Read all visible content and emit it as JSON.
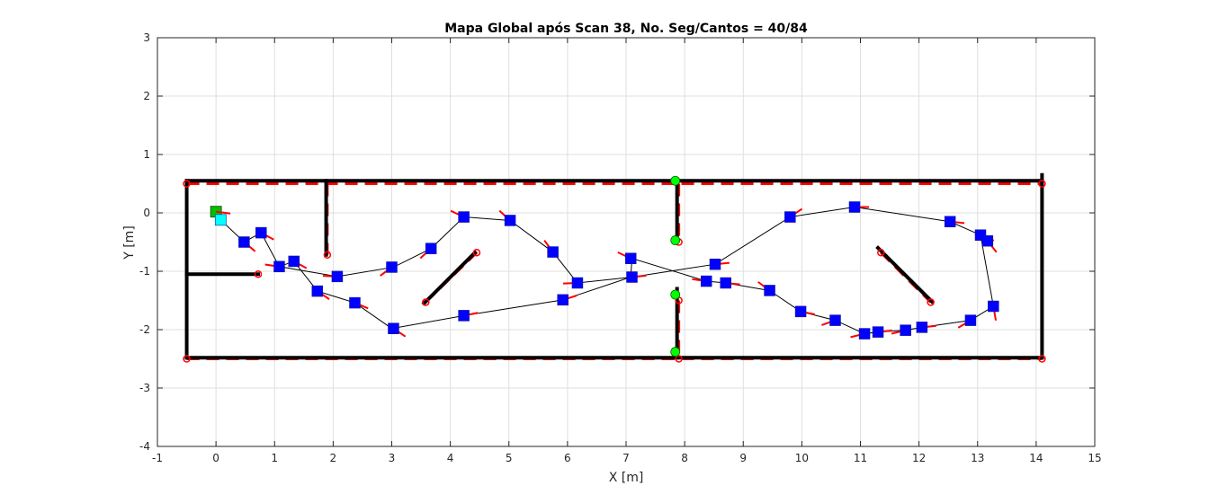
{
  "chart_data": {
    "type": "scatter",
    "title": "Mapa Global após Scan 38, No. Seg/Cantos = 40/84",
    "xlabel": "X [m]",
    "ylabel": "Y [m]",
    "xlim": [
      -1,
      15
    ],
    "ylim": [
      -4,
      3
    ],
    "xticks": [
      "-1",
      "0",
      "1",
      "2",
      "3",
      "4",
      "5",
      "6",
      "7",
      "8",
      "9",
      "10",
      "11",
      "12",
      "13",
      "14",
      "15"
    ],
    "yticks": [
      "-4",
      "-3",
      "-2",
      "-1",
      "0",
      "1",
      "2",
      "3"
    ],
    "grid": true,
    "colors": {
      "wall_segments": "#000000",
      "reference_map": "#ff0000",
      "robot_pose": "#0000ff",
      "start_pose": "#00c000",
      "current_pose": "#00ffff",
      "endpoint_marker": "#00ff00"
    },
    "walls": [
      {
        "x": [
          -0.5,
          14.1
        ],
        "y": [
          0.55,
          0.55
        ]
      },
      {
        "x": [
          -0.5,
          14.1
        ],
        "y": [
          -2.48,
          -2.48
        ]
      },
      {
        "x": [
          -0.5,
          -0.5
        ],
        "y": [
          0.55,
          -2.48
        ]
      },
      {
        "x": [
          14.1,
          14.1
        ],
        "y": [
          0.65,
          -2.48
        ]
      },
      {
        "x": [
          1.88,
          1.88
        ],
        "y": [
          0.55,
          -0.72
        ]
      },
      {
        "x": [
          -0.5,
          0.72
        ],
        "y": [
          -1.05,
          -1.05
        ]
      },
      {
        "x": [
          7.87,
          7.87
        ],
        "y": [
          0.55,
          -0.47
        ]
      },
      {
        "x": [
          7.87,
          7.87
        ],
        "y": [
          -1.3,
          -2.48
        ]
      },
      {
        "x": [
          3.55,
          4.42
        ],
        "y": [
          -1.55,
          -0.68
        ]
      },
      {
        "x": [
          11.3,
          12.22
        ],
        "y": [
          -0.6,
          -1.52
        ]
      }
    ],
    "reference_segments": [
      {
        "x": [
          -0.5,
          14.1
        ],
        "y": [
          0.5,
          0.5
        ]
      },
      {
        "x": [
          -0.5,
          14.1
        ],
        "y": [
          -2.5,
          -2.5
        ]
      },
      {
        "x": [
          -0.5,
          -0.5
        ],
        "y": [
          0.5,
          -2.5
        ]
      },
      {
        "x": [
          14.1,
          14.1
        ],
        "y": [
          0.5,
          -2.5
        ]
      },
      {
        "x": [
          1.9,
          1.9
        ],
        "y": [
          0.5,
          -0.72
        ]
      },
      {
        "x": [
          -0.5,
          0.72
        ],
        "y": [
          -1.05,
          -1.05
        ]
      },
      {
        "x": [
          7.9,
          7.9
        ],
        "y": [
          0.5,
          -0.5
        ]
      },
      {
        "x": [
          7.9,
          7.9
        ],
        "y": [
          -1.5,
          -2.5
        ]
      },
      {
        "x": [
          3.58,
          4.45
        ],
        "y": [
          -1.53,
          -0.68
        ]
      },
      {
        "x": [
          11.35,
          12.2
        ],
        "y": [
          -0.68,
          -1.53
        ]
      }
    ],
    "corners": [
      {
        "x": -0.5,
        "y": 0.5
      },
      {
        "x": 14.1,
        "y": 0.5
      },
      {
        "x": -0.5,
        "y": -2.5
      },
      {
        "x": 14.1,
        "y": -2.5
      },
      {
        "x": 1.9,
        "y": -0.72
      },
      {
        "x": 0.72,
        "y": -1.05
      },
      {
        "x": 7.9,
        "y": -0.5
      },
      {
        "x": 7.9,
        "y": -1.5
      },
      {
        "x": 7.9,
        "y": -2.5
      },
      {
        "x": 3.58,
        "y": -1.53
      },
      {
        "x": 4.45,
        "y": -0.68
      },
      {
        "x": 11.35,
        "y": -0.68
      },
      {
        "x": 12.2,
        "y": -1.53
      }
    ],
    "endpoints": [
      {
        "x": 7.84,
        "y": 0.55
      },
      {
        "x": 7.84,
        "y": -0.47
      },
      {
        "x": 7.84,
        "y": -1.4
      },
      {
        "x": 7.84,
        "y": -2.38
      }
    ],
    "trajectory": {
      "x": [
        0.0,
        0.08,
        0.48,
        0.77,
        1.08,
        1.33,
        1.73,
        2.37,
        3.0,
        4.23,
        5.92,
        7.08,
        7.1,
        8.37,
        8.7,
        9.45,
        9.98,
        10.57,
        11.07,
        11.3,
        11.77,
        12.05,
        12.88,
        13.27,
        13.05,
        12.53,
        10.9,
        9.8,
        8.52,
        7.1,
        6.17,
        5.75,
        5.02,
        4.23,
        3.67,
        3.03,
        2.07,
        1.08,
        0.77,
        0.48,
        0.08
      ],
      "y": [
        0.02,
        -0.12,
        -0.5,
        -0.34,
        -0.92,
        -0.83,
        -1.34,
        -1.54,
        -1.98,
        -1.76,
        -1.49,
        -1.1,
        -0.78,
        -1.17,
        -1.2,
        -1.33,
        -1.69,
        -1.84,
        -2.07,
        -2.04,
        -2.01,
        -1.96,
        -1.84,
        -1.6,
        -0.38,
        -0.15,
        0.1,
        -0.07,
        -0.88,
        -1.1,
        -1.2,
        -0.67,
        -0.13,
        -0.07,
        -0.61,
        -0.93,
        -1.09,
        -0.92,
        -0.34,
        -0.5,
        -0.12
      ]
    },
    "poses": [
      {
        "x": 0.48,
        "y": -0.5,
        "a": -0.7
      },
      {
        "x": 0.77,
        "y": -0.34,
        "a": -0.5
      },
      {
        "x": 1.08,
        "y": -0.92,
        "a": 3.0
      },
      {
        "x": 1.33,
        "y": -0.83,
        "a": -0.5
      },
      {
        "x": 1.73,
        "y": -1.34,
        "a": -0.6
      },
      {
        "x": 2.07,
        "y": -1.09,
        "a": 3.1
      },
      {
        "x": 2.37,
        "y": -1.54,
        "a": -0.4
      },
      {
        "x": 3.0,
        "y": -0.93,
        "a": -2.5
      },
      {
        "x": 3.03,
        "y": -1.98,
        "a": -0.6
      },
      {
        "x": 3.67,
        "y": -0.61,
        "a": -2.4
      },
      {
        "x": 4.23,
        "y": -0.07,
        "a": 2.7
      },
      {
        "x": 4.23,
        "y": -1.76,
        "a": 0.2
      },
      {
        "x": 5.02,
        "y": -0.13,
        "a": 2.4
      },
      {
        "x": 5.75,
        "y": -0.67,
        "a": 2.2
      },
      {
        "x": 5.92,
        "y": -1.49,
        "a": 0.3
      },
      {
        "x": 6.17,
        "y": -1.2,
        "a": -3.1
      },
      {
        "x": 7.08,
        "y": -0.78,
        "a": 2.7
      },
      {
        "x": 7.1,
        "y": -1.1,
        "a": 0.1
      },
      {
        "x": 8.37,
        "y": -1.17,
        "a": 3.0
      },
      {
        "x": 8.52,
        "y": -0.88,
        "a": 0.1
      },
      {
        "x": 8.7,
        "y": -1.2,
        "a": -0.1
      },
      {
        "x": 9.45,
        "y": -1.33,
        "a": 2.5
      },
      {
        "x": 9.8,
        "y": -0.07,
        "a": 0.6
      },
      {
        "x": 9.98,
        "y": -1.69,
        "a": -0.2
      },
      {
        "x": 10.57,
        "y": -1.84,
        "a": -2.8
      },
      {
        "x": 10.9,
        "y": 0.1,
        "a": 0.0
      },
      {
        "x": 11.07,
        "y": -2.07,
        "a": -2.9
      },
      {
        "x": 11.3,
        "y": -2.04,
        "a": 0.1
      },
      {
        "x": 11.77,
        "y": -2.01,
        "a": -2.9
      },
      {
        "x": 12.05,
        "y": -1.96,
        "a": 0.1
      },
      {
        "x": 12.53,
        "y": -0.15,
        "a": -0.1
      },
      {
        "x": 12.88,
        "y": -1.84,
        "a": -2.6
      },
      {
        "x": 13.05,
        "y": -0.38,
        "a": -0.4
      },
      {
        "x": 13.17,
        "y": -0.48,
        "a": -0.9
      },
      {
        "x": 13.27,
        "y": -1.6,
        "a": -1.4
      }
    ],
    "start_pose": {
      "x": 0.0,
      "y": 0.02
    },
    "current_pose": {
      "x": 0.08,
      "y": -0.12
    }
  }
}
